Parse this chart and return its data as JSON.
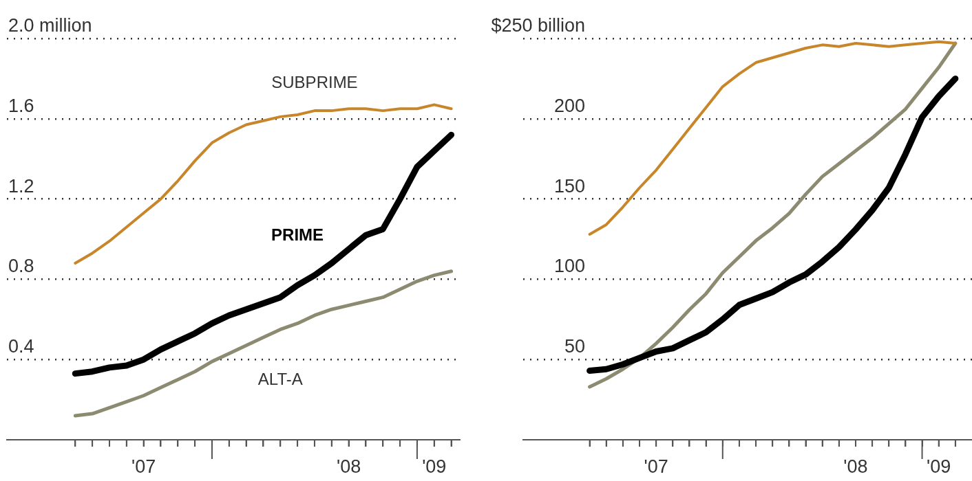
{
  "chart_data": [
    {
      "type": "line",
      "x": [
        "2007-05",
        "2007-06",
        "2007-07",
        "2007-08",
        "2007-09",
        "2007-10",
        "2007-11",
        "2007-12",
        "2008-01",
        "2008-02",
        "2008-03",
        "2008-04",
        "2008-05",
        "2008-06",
        "2008-07",
        "2008-08",
        "2008-09",
        "2008-10",
        "2008-11",
        "2008-12",
        "2009-01",
        "2009-02",
        "2009-03"
      ],
      "series": [
        {
          "name": "SUBPRIME",
          "color": "#c8862a",
          "values": [
            0.88,
            0.93,
            0.99,
            1.06,
            1.13,
            1.2,
            1.29,
            1.39,
            1.48,
            1.53,
            1.57,
            1.59,
            1.61,
            1.62,
            1.64,
            1.64,
            1.65,
            1.65,
            1.64,
            1.65,
            1.65,
            1.67,
            1.65
          ]
        },
        {
          "name": "PRIME",
          "color": "#000000",
          "values": [
            0.33,
            0.34,
            0.36,
            0.37,
            0.4,
            0.45,
            0.49,
            0.53,
            0.58,
            0.62,
            0.65,
            0.68,
            0.71,
            0.77,
            0.82,
            0.88,
            0.95,
            1.02,
            1.05,
            1.2,
            1.36,
            1.44,
            1.52
          ]
        },
        {
          "name": "ALT-A",
          "color": "#8c8a70",
          "values": [
            0.12,
            0.13,
            0.16,
            0.19,
            0.22,
            0.26,
            0.3,
            0.34,
            0.39,
            0.43,
            0.47,
            0.51,
            0.55,
            0.58,
            0.62,
            0.65,
            0.67,
            0.69,
            0.71,
            0.75,
            0.79,
            0.82,
            0.84
          ]
        }
      ],
      "xlim": [
        "2007-01",
        "2009-03-16"
      ],
      "xticks": [
        {
          "value": "2007-05",
          "label": null
        },
        {
          "value": "2007-06",
          "label": null
        },
        {
          "value": "2007-07",
          "label": null
        },
        {
          "value": "2007-08",
          "label": null
        },
        {
          "value": "2007-09",
          "label": "'07"
        },
        {
          "value": "2007-10",
          "label": null
        },
        {
          "value": "2007-11",
          "label": null
        },
        {
          "value": "2007-12",
          "label": null
        },
        {
          "value": "2008-01",
          "label": null
        },
        {
          "value": "2008-02",
          "label": null
        },
        {
          "value": "2008-03",
          "label": null
        },
        {
          "value": "2008-04",
          "label": null
        },
        {
          "value": "2008-05",
          "label": null
        },
        {
          "value": "2008-06",
          "label": null
        },
        {
          "value": "2008-07",
          "label": null
        },
        {
          "value": "2008-08",
          "label": null
        },
        {
          "value": "2008-09",
          "label": "'08"
        },
        {
          "value": "2008-10",
          "label": null
        },
        {
          "value": "2008-11",
          "label": null
        },
        {
          "value": "2008-12",
          "label": null
        },
        {
          "value": "2009-01",
          "label": null
        },
        {
          "value": "2009-02",
          "label": "'09"
        },
        {
          "value": "2009-03",
          "label": null
        }
      ],
      "ylim": [
        0,
        2.0
      ],
      "yticks": [
        0.4,
        0.8,
        1.2,
        1.6,
        {
          "value": 2.0,
          "label": "2.0 million"
        }
      ],
      "grid": "y",
      "legend": false,
      "marker": "none",
      "line_style": "solid"
    },
    {
      "type": "line",
      "x": [
        "2007-05",
        "2007-06",
        "2007-07",
        "2007-08",
        "2007-09",
        "2007-10",
        "2007-11",
        "2007-12",
        "2008-01",
        "2008-02",
        "2008-03",
        "2008-04",
        "2008-05",
        "2008-06",
        "2008-07",
        "2008-08",
        "2008-09",
        "2008-10",
        "2008-11",
        "2008-12",
        "2009-01",
        "2009-02",
        "2009-03"
      ],
      "series": [
        {
          "color": "#c8862a",
          "values": [
            128,
            134,
            145,
            157,
            168,
            181,
            194,
            207,
            220,
            228,
            235,
            238,
            241,
            244,
            246,
            245,
            247,
            246,
            245,
            246,
            247,
            248,
            247
          ]
        },
        {
          "color": "#000000",
          "values": [
            43,
            44,
            47,
            51,
            55,
            57,
            62,
            67,
            75,
            84,
            88,
            92,
            98,
            103,
            111,
            120,
            131,
            143,
            157,
            178,
            201,
            214,
            225
          ]
        },
        {
          "color": "#8c8a70",
          "values": [
            33,
            38,
            44,
            51,
            60,
            70,
            81,
            91,
            104,
            114,
            124,
            132,
            141,
            153,
            164,
            172,
            180,
            188,
            197,
            206,
            219,
            232,
            247
          ]
        }
      ],
      "xlim": [
        "2007-01",
        "2009-04"
      ],
      "xticks": [
        {
          "value": "2007-05",
          "label": null
        },
        {
          "value": "2007-06",
          "label": null
        },
        {
          "value": "2007-07",
          "label": null
        },
        {
          "value": "2007-08",
          "label": null
        },
        {
          "value": "2007-09",
          "label": "'07"
        },
        {
          "value": "2007-10",
          "label": null
        },
        {
          "value": "2007-11",
          "label": null
        },
        {
          "value": "2007-12",
          "label": null
        },
        {
          "value": "2008-01",
          "label": null
        },
        {
          "value": "2008-02",
          "label": null
        },
        {
          "value": "2008-03",
          "label": null
        },
        {
          "value": "2008-04",
          "label": null
        },
        {
          "value": "2008-05",
          "label": null
        },
        {
          "value": "2008-06",
          "label": null
        },
        {
          "value": "2008-07",
          "label": null
        },
        {
          "value": "2008-08",
          "label": null
        },
        {
          "value": "2008-09",
          "label": "'08"
        },
        {
          "value": "2008-10",
          "label": null
        },
        {
          "value": "2008-11",
          "label": null
        },
        {
          "value": "2008-12",
          "label": null
        },
        {
          "value": "2009-01",
          "label": null
        },
        {
          "value": "2009-02",
          "label": "'09"
        },
        {
          "value": "2009-03",
          "label": null
        }
      ],
      "ylim": [
        0,
        250
      ],
      "yticks": [
        50,
        100,
        150,
        200,
        {
          "value": 250,
          "label": "$250 billion"
        }
      ],
      "grid": "y",
      "legend": false,
      "marker": "none",
      "line_style": "solid"
    }
  ]
}
